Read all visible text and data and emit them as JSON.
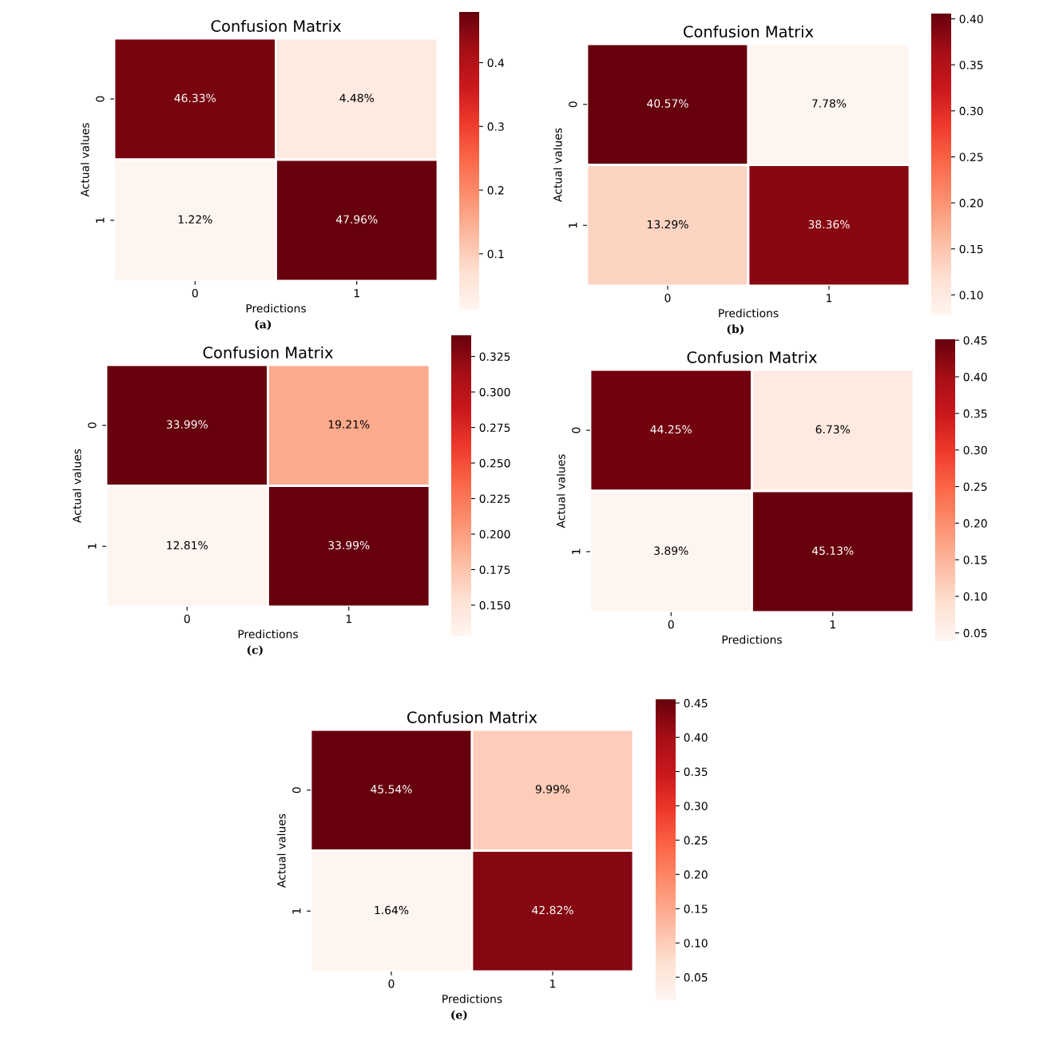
{
  "chart_data": [
    {
      "type": "heatmap",
      "title": "Confusion Matrix",
      "xlabel": "Predictions",
      "ylabel": "Actual values",
      "categories": [
        "0",
        "1"
      ],
      "y_categories": [
        "0",
        "1"
      ],
      "cells": [
        [
          0.4633,
          0.0448
        ],
        [
          0.0122,
          0.4796
        ]
      ],
      "cell_labels": [
        [
          "46.33%",
          "4.48%"
        ],
        [
          "1.22%",
          "47.96%"
        ]
      ],
      "clim": [
        0.0122,
        0.4796
      ],
      "cticks": [
        0.1,
        0.2,
        0.3,
        0.4
      ],
      "annotations": [
        "(a)"
      ]
    },
    {
      "type": "heatmap",
      "title": "Confusion Matrix",
      "xlabel": "Predictions",
      "ylabel": "Actual values",
      "categories": [
        "0",
        "1"
      ],
      "y_categories": [
        "0",
        "1"
      ],
      "cells": [
        [
          0.4057,
          0.0778
        ],
        [
          0.1329,
          0.3836
        ]
      ],
      "cell_labels": [
        [
          "40.57%",
          "7.78%"
        ],
        [
          "13.29%",
          "38.36%"
        ]
      ],
      "clim": [
        0.0778,
        0.4057
      ],
      "cticks": [
        {
          "value": 0.1,
          "label": "0.10"
        },
        {
          "value": 0.15,
          "label": "0.15"
        },
        {
          "value": 0.2,
          "label": "0.20"
        },
        {
          "value": 0.25,
          "label": "0.25"
        },
        {
          "value": 0.3,
          "label": "0.30"
        },
        {
          "value": 0.35,
          "label": "0.35"
        },
        {
          "value": 0.4,
          "label": "0.40"
        }
      ],
      "annotations": [
        "(b)"
      ]
    },
    {
      "type": "heatmap",
      "title": "Confusion Matrix",
      "xlabel": "Predictions",
      "ylabel": "Actual values",
      "categories": [
        "0",
        "1"
      ],
      "y_categories": [
        "0",
        "1"
      ],
      "cells": [
        [
          0.3399,
          0.1921
        ],
        [
          0.1281,
          0.3399
        ]
      ],
      "cell_labels": [
        [
          "33.99%",
          "19.21%"
        ],
        [
          "12.81%",
          "33.99%"
        ]
      ],
      "clim": [
        0.1281,
        0.3399
      ],
      "cticks": [
        {
          "value": 0.15,
          "label": "0.150"
        },
        0.175,
        {
          "value": 0.2,
          "label": "0.200"
        },
        0.225,
        {
          "value": 0.25,
          "label": "0.250"
        },
        0.275,
        {
          "value": 0.3,
          "label": "0.300"
        },
        0.325
      ],
      "annotations": [
        "(c)"
      ]
    },
    {
      "type": "heatmap",
      "title": "Confusion Matrix",
      "xlabel": "Predictions",
      "ylabel": "Actual values",
      "categories": [
        "0",
        "1"
      ],
      "y_categories": [
        "0",
        "1"
      ],
      "cells": [
        [
          0.4425,
          0.0673
        ],
        [
          0.0389,
          0.4513
        ]
      ],
      "cell_labels": [
        [
          "44.25%",
          "6.73%"
        ],
        [
          "3.89%",
          "45.13%"
        ]
      ],
      "clim": [
        0.0389,
        0.4513
      ],
      "cticks": [
        0.05,
        {
          "value": 0.1,
          "label": "0.10"
        },
        0.15,
        {
          "value": 0.2,
          "label": "0.20"
        },
        0.25,
        {
          "value": 0.3,
          "label": "0.30"
        },
        0.35,
        {
          "value": 0.4,
          "label": "0.40"
        },
        0.45
      ]
    },
    {
      "type": "heatmap",
      "title": "Confusion Matrix",
      "xlabel": "Predictions",
      "ylabel": "Actual values",
      "categories": [
        "0",
        "1"
      ],
      "y_categories": [
        "0",
        "1"
      ],
      "cells": [
        [
          0.4554,
          0.0999
        ],
        [
          0.0164,
          0.4282
        ]
      ],
      "cell_labels": [
        [
          "45.54%",
          "9.99%"
        ],
        [
          "1.64%",
          "42.82%"
        ]
      ],
      "clim": [
        0.0164,
        0.4554
      ],
      "cticks": [
        0.05,
        {
          "value": 0.1,
          "label": "0.10"
        },
        0.15,
        {
          "value": 0.2,
          "label": "0.20"
        },
        0.25,
        {
          "value": 0.3,
          "label": "0.30"
        },
        0.35,
        {
          "value": 0.4,
          "label": "0.40"
        },
        0.45
      ],
      "annotations": [
        "(e)"
      ]
    }
  ]
}
